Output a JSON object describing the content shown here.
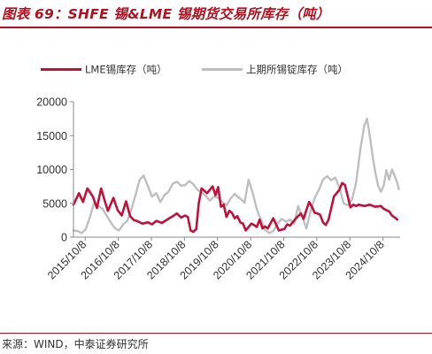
{
  "header": {
    "title": "图表 69：SHFE 锡&LME 锡期货交易所库存（吨）"
  },
  "footer": {
    "source": "来源：WIND，中泰证券研究所"
  },
  "colors": {
    "lme": "#c0113a",
    "shfe": "#bfbfbf",
    "accent": "#b3101f",
    "axis": "#888888"
  },
  "chart_data": {
    "type": "line",
    "title": "SHFE 锡&LME 锡期货交易所库存（吨）",
    "xlabel": "",
    "ylabel": "",
    "ylim": [
      0,
      20000
    ],
    "yticks": [
      0,
      5000,
      10000,
      15000,
      20000
    ],
    "ytick_labels": [
      "0",
      "5000",
      "10000",
      "15000",
      "20000"
    ],
    "xlim": [
      "2015-06-01",
      "2025-04-15"
    ],
    "xticks": [
      "2015-10-08",
      "2016-10-08",
      "2017-10-08",
      "2018-10-08",
      "2019-10-08",
      "2020-10-08",
      "2021-10-08",
      "2022-10-08",
      "2023-10-08",
      "2024-10-08"
    ],
    "xtick_labels": [
      "2015/10/8",
      "2016/10/8",
      "2017/10/8",
      "2018/10/8",
      "2019/10/8",
      "2020/10/8",
      "2021/10/8",
      "2022/10/8",
      "2023/10/8",
      "2024/10/8"
    ],
    "grid": false,
    "legend": "top",
    "series": [
      {
        "name": "LME锡库存（吨）",
        "color": "#c0113a",
        "points": [
          [
            "2015-06-01",
            4800
          ],
          [
            "2015-08-01",
            6500
          ],
          [
            "2015-09-15",
            5200
          ],
          [
            "2015-11-01",
            7200
          ],
          [
            "2016-01-01",
            6000
          ],
          [
            "2016-02-15",
            4300
          ],
          [
            "2016-04-01",
            7200
          ],
          [
            "2016-05-15",
            5200
          ],
          [
            "2016-06-15",
            3900
          ],
          [
            "2016-08-15",
            5800
          ],
          [
            "2016-10-01",
            4000
          ],
          [
            "2016-11-15",
            3200
          ],
          [
            "2017-01-01",
            5300
          ],
          [
            "2017-02-15",
            3100
          ],
          [
            "2017-04-01",
            2500
          ],
          [
            "2017-05-01",
            2400
          ],
          [
            "2017-07-01",
            2000
          ],
          [
            "2017-09-01",
            2200
          ],
          [
            "2017-10-15",
            1900
          ],
          [
            "2017-12-01",
            2400
          ],
          [
            "2018-02-01",
            2100
          ],
          [
            "2018-04-01",
            2600
          ],
          [
            "2018-06-01",
            3100
          ],
          [
            "2018-07-15",
            3500
          ],
          [
            "2018-09-01",
            2900
          ],
          [
            "2018-10-15",
            3200
          ],
          [
            "2018-11-15",
            3000
          ],
          [
            "2018-12-15",
            1000
          ],
          [
            "2019-01-15",
            800
          ],
          [
            "2019-02-15",
            1200
          ],
          [
            "2019-03-15",
            5000
          ],
          [
            "2019-04-15",
            7200
          ],
          [
            "2019-06-15",
            6500
          ],
          [
            "2019-08-15",
            7500
          ],
          [
            "2019-09-15",
            6200
          ],
          [
            "2019-10-15",
            7400
          ],
          [
            "2019-11-15",
            4500
          ],
          [
            "2019-12-15",
            4800
          ],
          [
            "2020-01-15",
            3000
          ],
          [
            "2020-02-15",
            3900
          ],
          [
            "2020-03-15",
            3600
          ],
          [
            "2020-04-15",
            2800
          ],
          [
            "2020-05-15",
            3100
          ],
          [
            "2020-06-15",
            2200
          ],
          [
            "2020-07-15",
            2000
          ],
          [
            "2020-08-15",
            1000
          ],
          [
            "2020-09-15",
            1500
          ],
          [
            "2020-10-15",
            2000
          ],
          [
            "2020-11-15",
            1800
          ],
          [
            "2020-12-15",
            1500
          ],
          [
            "2021-01-15",
            2600
          ],
          [
            "2021-02-15",
            1300
          ],
          [
            "2021-03-15",
            1600
          ],
          [
            "2021-04-15",
            1300
          ],
          [
            "2021-06-15",
            2800
          ],
          [
            "2021-08-15",
            1000
          ],
          [
            "2021-10-15",
            1200
          ],
          [
            "2021-11-15",
            1900
          ],
          [
            "2021-12-15",
            1700
          ],
          [
            "2022-02-15",
            2700
          ],
          [
            "2022-04-15",
            3500
          ],
          [
            "2022-05-15",
            2700
          ],
          [
            "2022-06-15",
            4000
          ],
          [
            "2022-07-15",
            5200
          ],
          [
            "2022-08-15",
            4500
          ],
          [
            "2022-09-15",
            3600
          ],
          [
            "2022-10-15",
            3500
          ],
          [
            "2022-11-15",
            3300
          ],
          [
            "2022-12-15",
            2200
          ],
          [
            "2023-01-15",
            1800
          ],
          [
            "2023-02-15",
            2600
          ],
          [
            "2023-04-15",
            6000
          ],
          [
            "2023-06-15",
            7000
          ],
          [
            "2023-07-15",
            8000
          ],
          [
            "2023-08-15",
            7700
          ],
          [
            "2023-09-15",
            6000
          ],
          [
            "2023-10-15",
            4400
          ],
          [
            "2023-11-15",
            4800
          ],
          [
            "2023-12-15",
            4600
          ],
          [
            "2024-01-15",
            4800
          ],
          [
            "2024-03-15",
            4600
          ],
          [
            "2024-05-15",
            4800
          ],
          [
            "2024-07-15",
            4500
          ],
          [
            "2024-09-15",
            4600
          ],
          [
            "2024-10-15",
            4200
          ],
          [
            "2024-12-15",
            3800
          ],
          [
            "2025-01-15",
            3200
          ],
          [
            "2025-02-15",
            2900
          ],
          [
            "2025-03-15",
            2600
          ]
        ]
      },
      {
        "name": "上期所锡锭库存（吨）",
        "color": "#bfbfbf",
        "points": [
          [
            "2015-06-01",
            1000
          ],
          [
            "2015-07-15",
            900
          ],
          [
            "2015-09-01",
            600
          ],
          [
            "2015-10-15",
            1200
          ],
          [
            "2015-12-01",
            3000
          ],
          [
            "2016-01-15",
            5100
          ],
          [
            "2016-03-01",
            4600
          ],
          [
            "2016-04-15",
            4200
          ],
          [
            "2016-06-01",
            3200
          ],
          [
            "2016-07-15",
            2200
          ],
          [
            "2016-09-01",
            1300
          ],
          [
            "2016-10-15",
            1000
          ],
          [
            "2016-12-01",
            1900
          ],
          [
            "2017-01-15",
            2400
          ],
          [
            "2017-03-01",
            4100
          ],
          [
            "2017-04-15",
            6200
          ],
          [
            "2017-06-01",
            8500
          ],
          [
            "2017-07-15",
            9100
          ],
          [
            "2017-09-01",
            7500
          ],
          [
            "2017-10-15",
            6000
          ],
          [
            "2017-12-01",
            6500
          ],
          [
            "2018-01-15",
            5200
          ],
          [
            "2018-03-01",
            6200
          ],
          [
            "2018-04-15",
            6700
          ],
          [
            "2018-06-01",
            7900
          ],
          [
            "2018-07-15",
            8200
          ],
          [
            "2018-09-01",
            7600
          ],
          [
            "2018-10-15",
            7700
          ],
          [
            "2018-12-01",
            8300
          ],
          [
            "2019-01-15",
            7800
          ],
          [
            "2019-03-01",
            7000
          ],
          [
            "2019-04-15",
            6600
          ],
          [
            "2019-06-01",
            6100
          ],
          [
            "2019-07-15",
            5400
          ],
          [
            "2019-09-01",
            6000
          ],
          [
            "2019-10-15",
            5800
          ],
          [
            "2019-12-01",
            5200
          ],
          [
            "2020-01-15",
            4700
          ],
          [
            "2020-03-01",
            5700
          ],
          [
            "2020-04-15",
            6400
          ],
          [
            "2020-05-15",
            6000
          ],
          [
            "2020-06-15",
            5700
          ],
          [
            "2020-08-01",
            5100
          ],
          [
            "2020-09-15",
            8500
          ],
          [
            "2020-11-01",
            6500
          ],
          [
            "2020-12-15",
            4100
          ],
          [
            "2021-02-01",
            2500
          ],
          [
            "2021-03-15",
            1100
          ],
          [
            "2021-05-01",
            600
          ],
          [
            "2021-06-15",
            900
          ],
          [
            "2021-08-01",
            2000
          ],
          [
            "2021-09-15",
            2700
          ],
          [
            "2021-11-01",
            2300
          ],
          [
            "2021-12-15",
            2600
          ],
          [
            "2022-02-01",
            2000
          ],
          [
            "2022-03-15",
            4600
          ],
          [
            "2022-05-01",
            3000
          ],
          [
            "2022-06-15",
            1300
          ],
          [
            "2022-08-01",
            3900
          ],
          [
            "2022-09-15",
            5800
          ],
          [
            "2022-11-01",
            7000
          ],
          [
            "2022-12-15",
            8500
          ],
          [
            "2023-02-01",
            9000
          ],
          [
            "2023-03-15",
            8400
          ],
          [
            "2023-05-01",
            8800
          ],
          [
            "2023-06-15",
            7300
          ],
          [
            "2023-08-01",
            5000
          ],
          [
            "2023-09-15",
            4700
          ],
          [
            "2023-11-01",
            5600
          ],
          [
            "2023-12-15",
            8000
          ],
          [
            "2024-02-01",
            13000
          ],
          [
            "2024-03-15",
            16500
          ],
          [
            "2024-04-15",
            17500
          ],
          [
            "2024-05-15",
            15000
          ],
          [
            "2024-06-15",
            12000
          ],
          [
            "2024-07-15",
            9500
          ],
          [
            "2024-08-15",
            7600
          ],
          [
            "2024-09-15",
            6700
          ],
          [
            "2024-10-15",
            7600
          ],
          [
            "2024-11-15",
            9900
          ],
          [
            "2024-12-15",
            8500
          ],
          [
            "2025-01-15",
            10000
          ],
          [
            "2025-02-15",
            9000
          ],
          [
            "2025-03-15",
            8000
          ],
          [
            "2025-04-01",
            7100
          ]
        ]
      }
    ]
  }
}
